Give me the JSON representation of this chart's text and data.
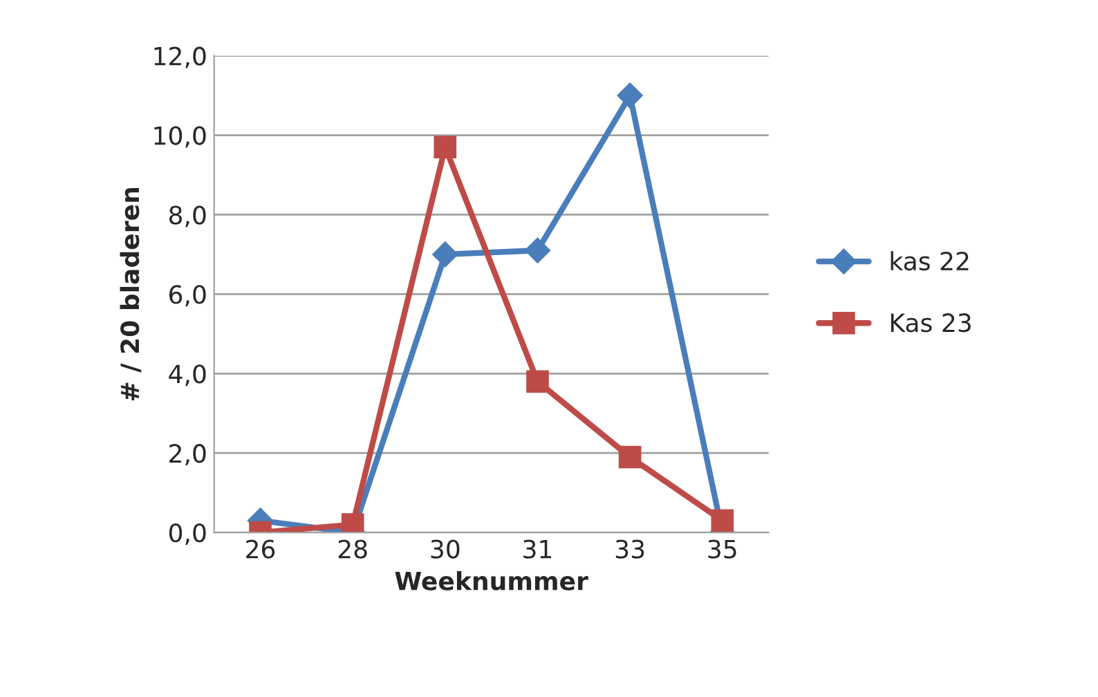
{
  "chart_data": {
    "type": "line",
    "xlabel": "Weeknummer",
    "ylabel": "# / 20 bladeren",
    "categories": [
      "26",
      "28",
      "30",
      "31",
      "33",
      "35"
    ],
    "series": [
      {
        "name": "kas 22",
        "color": "#4a7ebb",
        "marker": "diamond",
        "values": [
          0.3,
          0.0,
          7.0,
          7.1,
          11.0,
          0.0
        ]
      },
      {
        "name": "Kas 23",
        "color": "#be4b48",
        "marker": "square",
        "values": [
          0.0,
          0.2,
          9.7,
          3.8,
          1.9,
          0.3
        ]
      }
    ],
    "ylim": [
      0,
      12
    ],
    "yticks": [
      {
        "value": 0,
        "label": "0,0"
      },
      {
        "value": 2,
        "label": "2,0"
      },
      {
        "value": 4,
        "label": "4,0"
      },
      {
        "value": 6,
        "label": "6,0"
      },
      {
        "value": 8,
        "label": "8,0"
      },
      {
        "value": 10,
        "label": "10,0"
      },
      {
        "value": 12,
        "label": "12,0"
      }
    ],
    "grid": "y",
    "legend": "right",
    "line_style": "solid"
  }
}
